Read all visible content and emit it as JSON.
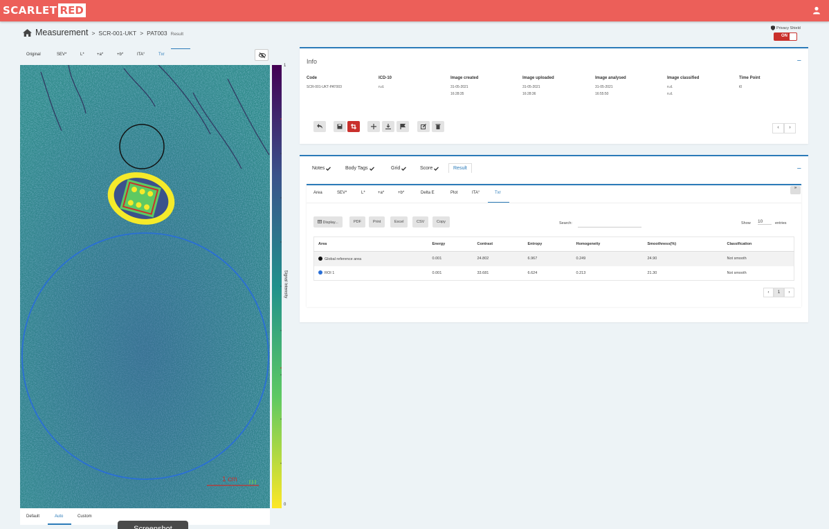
{
  "brand": {
    "logo_left": "SCARLET",
    "logo_right": "RED"
  },
  "breadcrumb": {
    "title": "Measurement",
    "sep": ">",
    "study": "SCR-001-UKT",
    "patient": "PAT003",
    "page": "Result"
  },
  "privacy": {
    "label": "Privacy Shield",
    "state": "ON"
  },
  "image_tabs": [
    "Original",
    "SEV*",
    "L*",
    "+a*",
    "+b*",
    "ITA°",
    "Txr"
  ],
  "colorbar": {
    "top": "1",
    "bottom": "0",
    "label": "Signal Intensity"
  },
  "scale_label": "1 cm",
  "view_tabs": [
    "Default",
    "Auto",
    "Custom"
  ],
  "screenshot_label": "Screenshot",
  "info": {
    "title": "Info",
    "collapse": "−",
    "columns": [
      {
        "header": "Code",
        "lines": [
          "SCR-001-UKT-PAT003"
        ]
      },
      {
        "header": "ICD-10",
        "lines": [
          "n.d."
        ]
      },
      {
        "header": "Image created",
        "lines": [
          "31-05-2021",
          "16:28:35"
        ]
      },
      {
        "header": "Image uploaded",
        "lines": [
          "31-05-2021",
          "16:28:36"
        ]
      },
      {
        "header": "Image analysed",
        "lines": [
          "31-05-2021",
          "16:55:50"
        ]
      },
      {
        "header": "Image classified",
        "lines": [
          "n.d.",
          "n.d."
        ]
      },
      {
        "header": "Time Point",
        "lines": [
          "t0"
        ]
      }
    ],
    "pager_prev": "‹",
    "pager_next": "›"
  },
  "result": {
    "collapse": "−",
    "tabs": [
      "Notes",
      "Body Tags",
      "Grid",
      "Score",
      "Result"
    ],
    "sub_tabs": [
      "Area",
      "SEV*",
      "L*",
      "+a*",
      "+b*",
      "Delta E",
      "Plot",
      "ITA°",
      "Txr"
    ],
    "collapse_icon": "»",
    "buttons": [
      "Display...",
      "PDF",
      "Print",
      "Excel",
      "CSV",
      "Copy"
    ],
    "search_label": "Search:",
    "show_label": "Show",
    "show_value": "10",
    "entries_label": "entries",
    "table": {
      "headers": [
        "Area",
        "Energy",
        "Contrast",
        "Entropy",
        "Homogeneity",
        "Smoothness(%)",
        "Classification"
      ],
      "rows": [
        {
          "area": "Global reference area",
          "dot_color": "#111111",
          "energy": "0.001",
          "contrast": "24.802",
          "entropy": "6.967",
          "homogeneity": "0.249",
          "smoothness": "24.90",
          "classification": "Not smooth"
        },
        {
          "area": "ROI 1",
          "dot_color": "#2a6fd6",
          "energy": "0.001",
          "contrast": "33.681",
          "entropy": "6.624",
          "homogeneity": "0.213",
          "smoothness": "21.30",
          "classification": "Not smooth"
        }
      ]
    },
    "pagination": {
      "prev": "‹",
      "current": "1",
      "next": "›"
    }
  },
  "colors": {
    "brand": "#ec5f59",
    "accent": "#2a7ab8",
    "danger": "#c9302c"
  }
}
